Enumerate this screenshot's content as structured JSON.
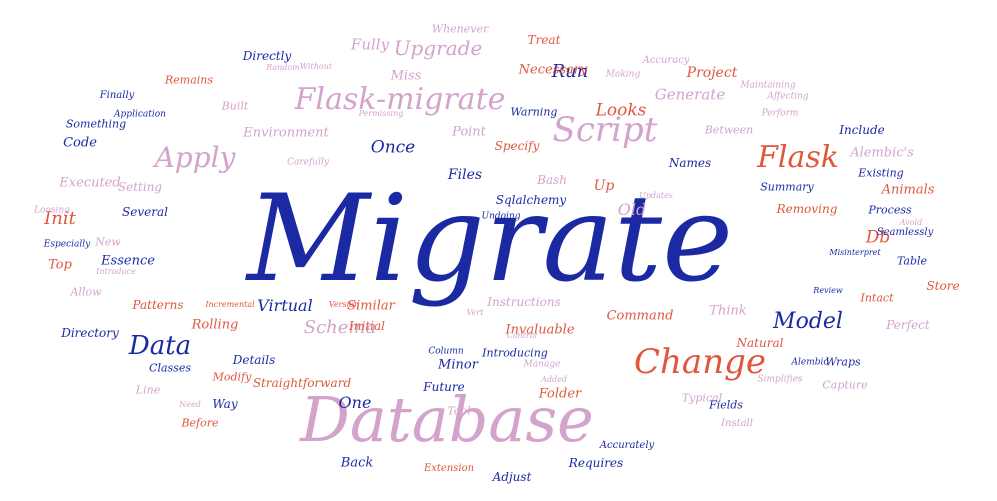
{
  "palette": {
    "navy": "#1b2aa3",
    "pink": "#d4a3cc",
    "red": "#e0573e",
    "blue": "#3a4cb8"
  },
  "words": [
    {
      "text": "Migrate",
      "color": "navy"
    },
    {
      "text": "Database",
      "color": "pink"
    },
    {
      "text": "Flask-migrate",
      "color": "pink"
    },
    {
      "text": "Change",
      "color": "red"
    },
    {
      "text": "Script",
      "color": "pink"
    },
    {
      "text": "Flask",
      "color": "red"
    },
    {
      "text": "Data",
      "color": "navy"
    },
    {
      "text": "Apply",
      "color": "pink"
    },
    {
      "text": "Model",
      "color": "navy"
    },
    {
      "text": "Upgrade",
      "color": "pink"
    },
    {
      "text": "Fully",
      "color": "pink"
    },
    {
      "text": "Run",
      "color": "navy"
    },
    {
      "text": "Once",
      "color": "navy"
    },
    {
      "text": "Schema",
      "color": "pink"
    },
    {
      "text": "Virtual",
      "color": "navy"
    },
    {
      "text": "One",
      "color": "navy"
    },
    {
      "text": "Old",
      "color": "pink"
    },
    {
      "text": "Init",
      "color": "red"
    },
    {
      "text": "Db",
      "color": "red"
    },
    {
      "text": "Looks",
      "color": "red"
    },
    {
      "text": "Generate",
      "color": "pink"
    },
    {
      "text": "Project",
      "color": "red"
    },
    {
      "text": "Necessary",
      "color": "red"
    },
    {
      "text": "Treat",
      "color": "red"
    },
    {
      "text": "Whenever",
      "color": "pink"
    },
    {
      "text": "Directly",
      "color": "navy"
    },
    {
      "text": "Miss",
      "color": "pink"
    },
    {
      "text": "Built",
      "color": "pink"
    },
    {
      "text": "Environment",
      "color": "pink"
    },
    {
      "text": "Point",
      "color": "pink"
    },
    {
      "text": "Specify",
      "color": "red"
    },
    {
      "text": "Files",
      "color": "navy"
    },
    {
      "text": "Names",
      "color": "navy"
    },
    {
      "text": "Bash",
      "color": "pink"
    },
    {
      "text": "Up",
      "color": "red"
    },
    {
      "text": "Sqlalchemy",
      "color": "navy"
    },
    {
      "text": "Updates",
      "color": "pink"
    },
    {
      "text": "Something",
      "color": "navy"
    },
    {
      "text": "Code",
      "color": "navy"
    },
    {
      "text": "Executed",
      "color": "pink"
    },
    {
      "text": "Setting",
      "color": "pink"
    },
    {
      "text": "Several",
      "color": "navy"
    },
    {
      "text": "Essence",
      "color": "navy"
    },
    {
      "text": "Top",
      "color": "red"
    },
    {
      "text": "Allow",
      "color": "pink"
    },
    {
      "text": "Patterns",
      "color": "red"
    },
    {
      "text": "Rolling",
      "color": "red"
    },
    {
      "text": "Directory",
      "color": "navy"
    },
    {
      "text": "Classes",
      "color": "navy"
    },
    {
      "text": "Modify",
      "color": "red"
    },
    {
      "text": "Details",
      "color": "navy"
    },
    {
      "text": "Straightforward",
      "color": "red"
    },
    {
      "text": "Minor",
      "color": "navy"
    },
    {
      "text": "Initial",
      "color": "red"
    },
    {
      "text": "Similar",
      "color": "red"
    },
    {
      "text": "Instructions",
      "color": "pink"
    },
    {
      "text": "Command",
      "color": "red"
    },
    {
      "text": "Think",
      "color": "pink"
    },
    {
      "text": "Invaluable",
      "color": "red"
    },
    {
      "text": "Introducing",
      "color": "navy"
    },
    {
      "text": "Future",
      "color": "navy"
    },
    {
      "text": "Folder",
      "color": "red"
    },
    {
      "text": "Tool",
      "color": "pink"
    },
    {
      "text": "Back",
      "color": "navy"
    },
    {
      "text": "Requires",
      "color": "navy"
    },
    {
      "text": "Adjust",
      "color": "navy"
    },
    {
      "text": "Extension",
      "color": "red"
    },
    {
      "text": "Accurately",
      "color": "navy"
    },
    {
      "text": "Typical",
      "color": "pink"
    },
    {
      "text": "Install",
      "color": "pink"
    },
    {
      "text": "Fields",
      "color": "navy"
    },
    {
      "text": "Natural",
      "color": "red"
    },
    {
      "text": "Alembic",
      "color": "navy"
    },
    {
      "text": "Wraps",
      "color": "navy"
    },
    {
      "text": "Capture",
      "color": "pink"
    },
    {
      "text": "Perfect",
      "color": "pink"
    },
    {
      "text": "Intact",
      "color": "red"
    },
    {
      "text": "Store",
      "color": "red"
    },
    {
      "text": "Table",
      "color": "navy"
    },
    {
      "text": "Seamlessly",
      "color": "navy"
    },
    {
      "text": "Process",
      "color": "navy"
    },
    {
      "text": "Animals",
      "color": "red"
    },
    {
      "text": "Existing",
      "color": "navy"
    },
    {
      "text": "Alembic's",
      "color": "pink"
    },
    {
      "text": "Include",
      "color": "navy"
    },
    {
      "text": "Removing",
      "color": "red"
    },
    {
      "text": "Summary",
      "color": "navy"
    },
    {
      "text": "Between",
      "color": "pink"
    },
    {
      "text": "Perform",
      "color": "pink"
    },
    {
      "text": "Affecting",
      "color": "pink"
    },
    {
      "text": "Maintaining",
      "color": "pink"
    },
    {
      "text": "Accuracy",
      "color": "pink"
    },
    {
      "text": "Making",
      "color": "pink"
    },
    {
      "text": "Remains",
      "color": "red"
    },
    {
      "text": "Finally",
      "color": "navy"
    },
    {
      "text": "Application",
      "color": "navy"
    },
    {
      "text": "Warning",
      "color": "navy"
    },
    {
      "text": "Way",
      "color": "navy"
    },
    {
      "text": "Before",
      "color": "red"
    },
    {
      "text": "Line",
      "color": "pink"
    },
    {
      "text": "Carefully",
      "color": "pink"
    },
    {
      "text": "Undoing",
      "color": "navy"
    },
    {
      "text": "Manage",
      "color": "pink"
    },
    {
      "text": "Column",
      "color": "navy"
    },
    {
      "text": "Added",
      "color": "pink"
    },
    {
      "text": "Vert",
      "color": "pink"
    },
    {
      "text": "Control",
      "color": "pink"
    },
    {
      "text": "Simplifies",
      "color": "pink"
    },
    {
      "text": "Review",
      "color": "navy"
    },
    {
      "text": "Loosing",
      "color": "pink"
    },
    {
      "text": "Especially",
      "color": "navy"
    },
    {
      "text": "New",
      "color": "pink"
    },
    {
      "text": "Need",
      "color": "pink"
    },
    {
      "text": "Without",
      "color": "pink"
    },
    {
      "text": "Random",
      "color": "pink"
    },
    {
      "text": "Permissing",
      "color": "pink"
    },
    {
      "text": "Introduce",
      "color": "pink"
    },
    {
      "text": "Misinterpret",
      "color": "navy"
    },
    {
      "text": "Avoid",
      "color": "pink"
    },
    {
      "text": "Incremental",
      "color": "red"
    },
    {
      "text": "Version",
      "color": "red"
    }
  ]
}
